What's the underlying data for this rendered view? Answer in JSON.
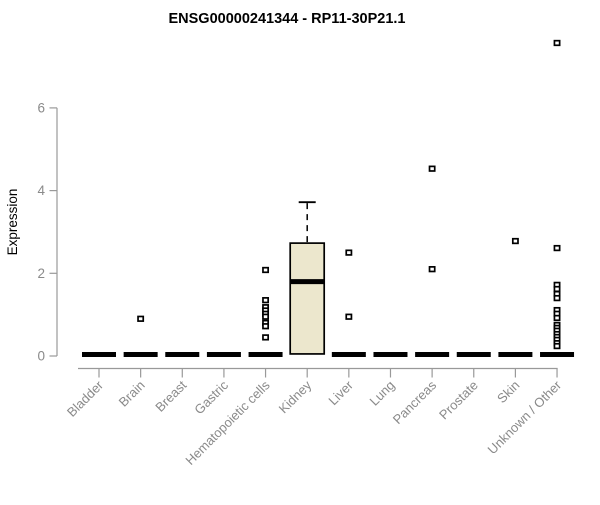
{
  "chart_data": {
    "type": "box",
    "title": "ENSG00000241344 - RP11-30P21.1",
    "ylabel": "Expression",
    "xlabel": "",
    "yticks": [
      0,
      2,
      4,
      6
    ],
    "ylim": [
      0,
      7.8
    ],
    "grid": false,
    "legend_position": "none",
    "categories": [
      "Bladder",
      "Brain",
      "Breast",
      "Gastric",
      "Hematopoietic cells",
      "Kidney",
      "Liver",
      "Lung",
      "Pancreas",
      "Prostate",
      "Skin",
      "Unknown / Other"
    ],
    "boxes": [
      {
        "category": "Bladder",
        "q1": 0,
        "median": 0,
        "q3": 0,
        "whisker_low": 0,
        "whisker_high": 0,
        "outliers": []
      },
      {
        "category": "Brain",
        "q1": 0,
        "median": 0,
        "q3": 0,
        "whisker_low": 0,
        "whisker_high": 0,
        "outliers": [
          0.9
        ]
      },
      {
        "category": "Breast",
        "q1": 0,
        "median": 0,
        "q3": 0,
        "whisker_low": 0,
        "whisker_high": 0,
        "outliers": []
      },
      {
        "category": "Gastric",
        "q1": 0,
        "median": 0,
        "q3": 0,
        "whisker_low": 0,
        "whisker_high": 0,
        "outliers": []
      },
      {
        "category": "Hematopoietic cells",
        "q1": 0,
        "median": 0,
        "q3": 0,
        "whisker_low": 0,
        "whisker_high": 0,
        "outliers": [
          2.08,
          1.35,
          1.18,
          1.1,
          1.02,
          0.95,
          0.8,
          0.72,
          0.45
        ]
      },
      {
        "category": "Kidney",
        "q1": 0.05,
        "median": 1.8,
        "q3": 2.73,
        "whisker_low": 0.05,
        "whisker_high": 3.72,
        "outliers": []
      },
      {
        "category": "Liver",
        "q1": 0,
        "median": 0,
        "q3": 0,
        "whisker_low": 0,
        "whisker_high": 0,
        "outliers": [
          2.5,
          0.95
        ]
      },
      {
        "category": "Lung",
        "q1": 0,
        "median": 0,
        "q3": 0,
        "whisker_low": 0,
        "whisker_high": 0,
        "outliers": []
      },
      {
        "category": "Pancreas",
        "q1": 0,
        "median": 0,
        "q3": 0,
        "whisker_low": 0,
        "whisker_high": 0,
        "outliers": [
          4.53,
          2.1
        ]
      },
      {
        "category": "Prostate",
        "q1": 0,
        "median": 0,
        "q3": 0,
        "whisker_low": 0,
        "whisker_high": 0,
        "outliers": []
      },
      {
        "category": "Skin",
        "q1": 0,
        "median": 0,
        "q3": 0,
        "whisker_low": 0,
        "whisker_high": 0,
        "outliers": [
          2.78
        ]
      },
      {
        "category": "Unknown / Other",
        "q1": 0,
        "median": 0,
        "q3": 0,
        "whisker_low": 0,
        "whisker_high": 0,
        "outliers": [
          7.57,
          2.61,
          1.72,
          1.62,
          1.5,
          1.4,
          1.11,
          1.02,
          0.92,
          0.75,
          0.68,
          0.61,
          0.53,
          0.46,
          0.39,
          0.31,
          0.24
        ]
      }
    ],
    "colors": {
      "background": "#FFFFFF",
      "box_fill": "#ECE7CD",
      "box_border": "#000000",
      "median": "#000000",
      "outlier_fill": "#FFFFFF",
      "outlier_stroke": "#000000",
      "axis": "#999999",
      "tick_label": "#8A8A8A",
      "title": "#000000"
    }
  }
}
